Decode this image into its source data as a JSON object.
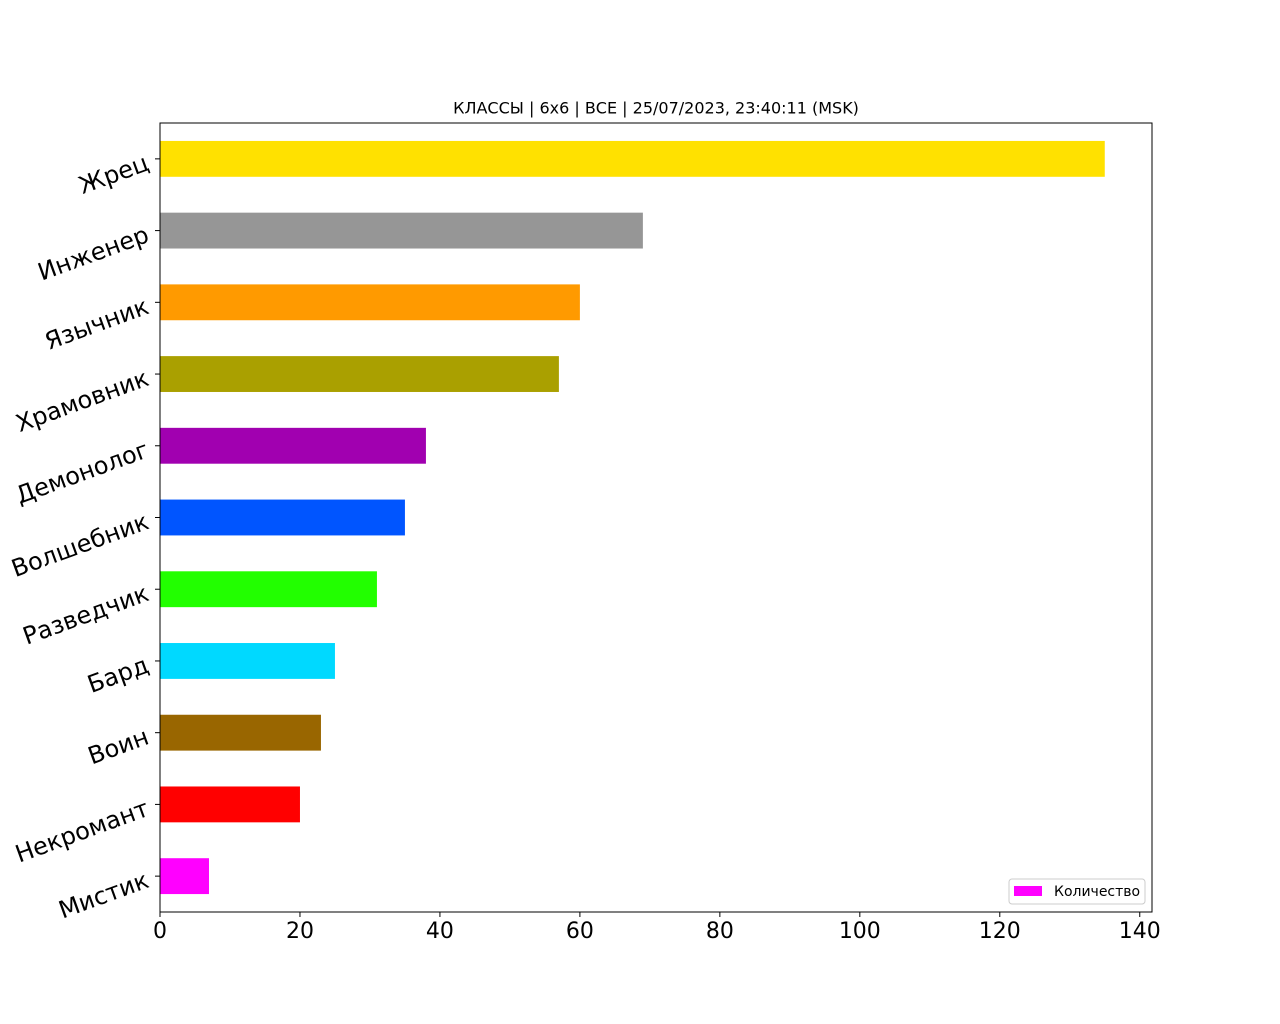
{
  "chart_data": {
    "type": "barh",
    "title": "КЛАССЫ | 6x6 | ВСЕ | 25/07/2023, 23:40:11 (MSK)",
    "categories": [
      "Мистик",
      "Некромант",
      "Воин",
      "Бард",
      "Разведчик",
      "Волшебник",
      "Демонолог",
      "Храмовник",
      "Язычник",
      "Инженер",
      "Жрец"
    ],
    "series": [
      {
        "name": "Количество",
        "colors": [
          "#ff00ff",
          "#ff0000",
          "#996600",
          "#00d9ff",
          "#22ff00",
          "#0055ff",
          "#a100b0",
          "#aaa000",
          "#ff9a00",
          "#969696",
          "#ffe100"
        ],
        "values": [
          7,
          20,
          23,
          25,
          31,
          35,
          38,
          57,
          60,
          69,
          135
        ]
      }
    ],
    "xlim": [
      0,
      141.75
    ],
    "xticks": [
      0,
      20,
      40,
      60,
      80,
      100,
      120,
      140
    ],
    "legend": "lower right",
    "grid": false
  }
}
